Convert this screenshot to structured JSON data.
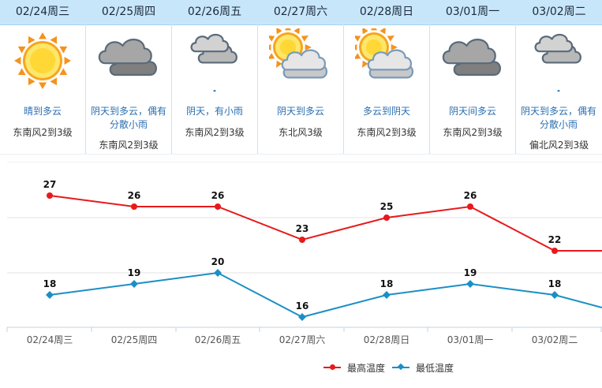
{
  "days": [
    {
      "date": "02/24周三",
      "desc": "晴到多云",
      "wind": "东南风2到3级",
      "icon": "sun-icon"
    },
    {
      "date": "02/25周四",
      "desc": "阴天到多云，偶有分散小雨",
      "wind": "东南风2到3级",
      "icon": "overcast-clouds-icon"
    },
    {
      "date": "02/26周五",
      "desc": "阴天，有小雨",
      "wind": "东南风2到3级",
      "icon": "cloud-rain-icon"
    },
    {
      "date": "02/27周六",
      "desc": "阴天到多云",
      "wind": "东北风3级",
      "icon": "sun-behind-cloud-icon"
    },
    {
      "date": "02/28周日",
      "desc": "多云到阴天",
      "wind": "东南风2到3级",
      "icon": "sun-behind-cloud-icon"
    },
    {
      "date": "03/01周一",
      "desc": "阴天间多云",
      "wind": "东南风2到3级",
      "icon": "overcast-clouds-icon"
    },
    {
      "date": "03/02周二",
      "desc": "阴天到多云，偶有分散小雨",
      "wind": "偏北风2到3级",
      "icon": "cloud-rain-icon"
    }
  ],
  "colors": {
    "high": "#e8191b",
    "low": "#1b8fc5",
    "header": "#c8e6fa",
    "desc": "#2a6fb1"
  },
  "chart_data": {
    "type": "line",
    "categories": [
      "02/24周三",
      "02/25周四",
      "02/26周五",
      "02/27周六",
      "02/28周日",
      "03/01周一",
      "03/02周二"
    ],
    "series": [
      {
        "name": "最高温度",
        "values": [
          27,
          26,
          26,
          23,
          25,
          26,
          22
        ],
        "marker": "circle",
        "color": "#e8191b"
      },
      {
        "name": "最低温度",
        "values": [
          18,
          19,
          20,
          16,
          18,
          19,
          18
        ],
        "marker": "diamond",
        "color": "#1b8fc5"
      }
    ],
    "ylim": [
      15,
      30
    ],
    "grid": true,
    "legend": "bottom-right",
    "data_labels": true
  },
  "legend": {
    "high": "最高温度",
    "low": "最低温度"
  }
}
